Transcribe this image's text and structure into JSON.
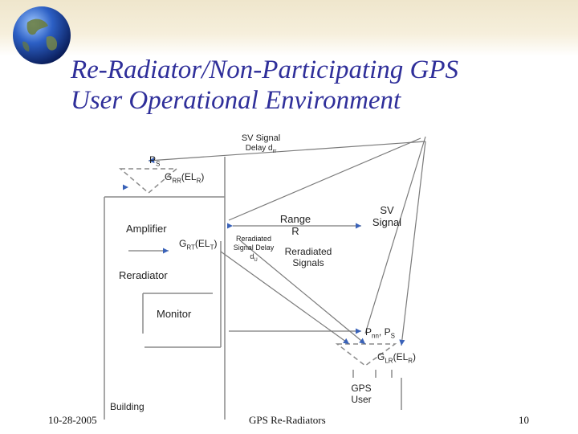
{
  "slide": {
    "title_line1": "Re-Radiator/Non-Participating GPS",
    "title_line2": "User Operational Environment"
  },
  "diagram": {
    "sv_signal_delay": "SV Signal\nDelay d",
    "sv_signal_delay_sub": "rr",
    "ps": "P",
    "ps_sub": "S",
    "grr": "G",
    "grr_sub": "RR",
    "grr_arg": "(EL",
    "grr_arg_sub": "R",
    "grr_close": ")",
    "amplifier": "Amplifier",
    "grt": "G",
    "grt_sub": "RT",
    "grt_arg": "(EL",
    "grt_arg_sub": "T",
    "grt_close": ")",
    "reradiator": "Reradiator",
    "monitor": "Monitor",
    "building": "Building",
    "range": "Range\nR",
    "reradiated_signal_delay": "Reradiated\nSignal Delay\nd",
    "reradiated_signal_delay_sub": "U",
    "reradiated_signals": "Reradiated\nSignals",
    "sv_signal": "SV\nSignal",
    "pnn_ps": "P",
    "pnn_sub": "nn",
    "pnn_rest": ", P",
    "pnn_rest_sub": "S",
    "glr": "G",
    "glr_sub": "LR",
    "glr_arg": "(EL",
    "glr_arg_sub": "R",
    "glr_close": ")",
    "gps_user": "GPS\nUser"
  },
  "footer": {
    "date": "10-28-2005",
    "center": "GPS Re-Radiators",
    "page": "10"
  },
  "colors": {
    "title": "#2f2f9a",
    "lines": "#888888",
    "arrows": "#3a62b8"
  }
}
